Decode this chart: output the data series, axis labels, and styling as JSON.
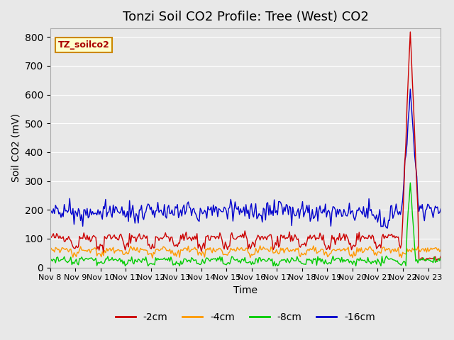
{
  "title": "Tonzi Soil CO2 Profile: Tree (West) CO2",
  "ylabel": "Soil CO2 (mV)",
  "xlabel": "Time",
  "legend_label": "TZ_soilco2",
  "series_labels": [
    "-2cm",
    "-4cm",
    "-8cm",
    "-16cm"
  ],
  "series_colors": [
    "#cc0000",
    "#ff9900",
    "#00cc00",
    "#0000cc"
  ],
  "ylim": [
    0,
    830
  ],
  "xlim_days": [
    0,
    15.5
  ],
  "x_tick_labels": [
    "Nov 8",
    "Nov 9",
    "Nov 10",
    "Nov 11",
    "Nov 12",
    "Nov 13",
    "Nov 14",
    "Nov 15",
    "Nov 16",
    "Nov 17",
    "Nov 18",
    "Nov 19",
    "Nov 20",
    "Nov 21",
    "Nov 22",
    "Nov 23"
  ],
  "background_color": "#e8e8e8",
  "plot_bg_color": "#e8e8e8",
  "title_fontsize": 13,
  "axis_fontsize": 10,
  "legend_fontsize": 10,
  "grid_color": "#ffffff",
  "seed": 42,
  "n_points": 360,
  "spike_day": 14.3,
  "spike_value_red": 720,
  "spike_value_blue": 415,
  "spike_value_green": 270,
  "red_base": 105,
  "orange_base": 62,
  "green_base": 25,
  "blue_base": 195
}
